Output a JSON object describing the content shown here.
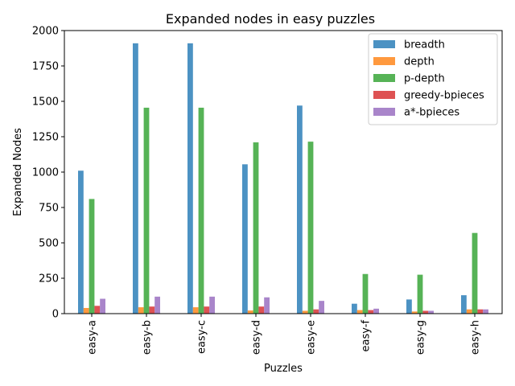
{
  "chart_data": {
    "type": "bar",
    "title": "Expanded nodes in easy puzzles",
    "xlabel": "Puzzles",
    "ylabel": "Expanded Nodes",
    "ylim": [
      0,
      2000
    ],
    "yticks": [
      0,
      250,
      500,
      750,
      1000,
      1250,
      1500,
      1750,
      2000
    ],
    "grid": false,
    "legend_position": "top-right",
    "categories": [
      "easy-a",
      "easy-b",
      "easy-c",
      "easy-d",
      "easy-e",
      "easy-f",
      "easy-g",
      "easy-h"
    ],
    "series": [
      {
        "name": "breadth",
        "color": "#1f77b4",
        "values": [
          1010,
          1910,
          1910,
          1055,
          1470,
          70,
          100,
          130
        ]
      },
      {
        "name": "depth",
        "color": "#ff7f0e",
        "values": [
          40,
          45,
          45,
          22,
          20,
          25,
          15,
          30
        ]
      },
      {
        "name": "p-depth",
        "color": "#2ca02c",
        "values": [
          810,
          1455,
          1455,
          1210,
          1215,
          280,
          275,
          570
        ]
      },
      {
        "name": "greedy-bpieces",
        "color": "#d62728",
        "values": [
          55,
          50,
          50,
          50,
          30,
          25,
          20,
          30
        ]
      },
      {
        "name": "a*-bpieces",
        "color": "#9467bd",
        "values": [
          105,
          120,
          120,
          115,
          90,
          35,
          20,
          30
        ]
      }
    ]
  }
}
